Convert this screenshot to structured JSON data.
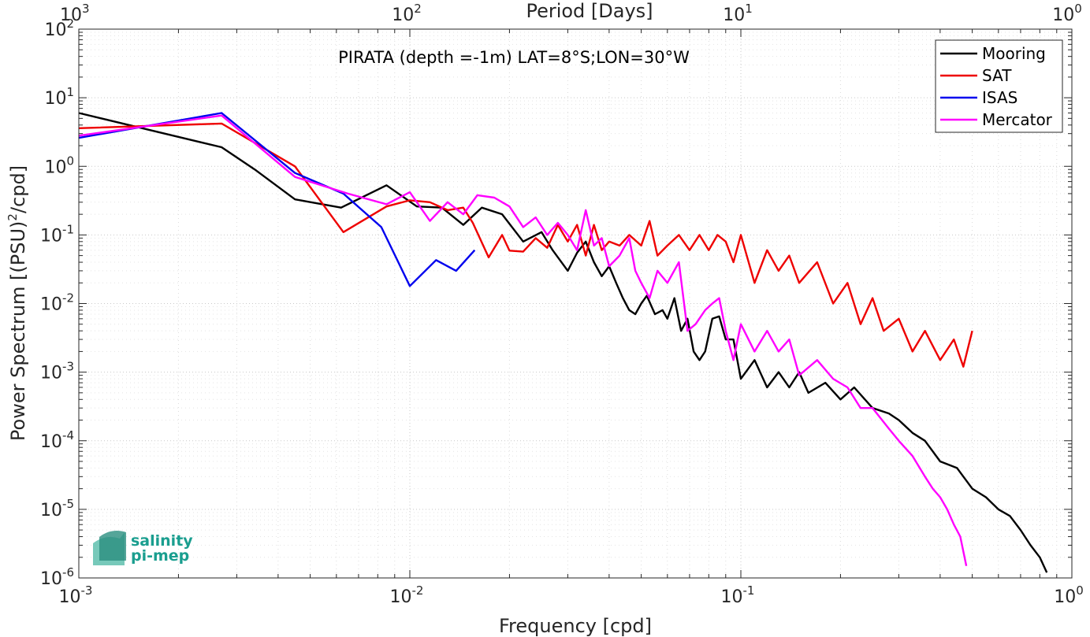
{
  "chart_data": {
    "type": "line",
    "title": "PIRATA (depth =-1m) LAT=8°S;LON=30°W",
    "xlabel": "Frequency [cpd]",
    "ylabel": "Power Spectrum [(PSU)²/cpd]",
    "ylabel_parts": {
      "pre": "Power Spectrum [(PSU)",
      "sup": "2",
      "post": "/cpd]"
    },
    "top_xlabel": "Period [Days]",
    "xscale": "log",
    "yscale": "log",
    "xlim": [
      0.001,
      1
    ],
    "ylim": [
      1e-06,
      100
    ],
    "x_ticks": [
      {
        "value": 0.001,
        "base": "10",
        "exp": "-3"
      },
      {
        "value": 0.01,
        "base": "10",
        "exp": "-2"
      },
      {
        "value": 0.1,
        "base": "10",
        "exp": "-1"
      },
      {
        "value": 1,
        "base": "10",
        "exp": "0"
      }
    ],
    "top_ticks": [
      {
        "value": 0.001,
        "base": "10",
        "exp": "3"
      },
      {
        "value": 0.01,
        "base": "10",
        "exp": "2"
      },
      {
        "value": 0.1,
        "base": "10",
        "exp": "1"
      },
      {
        "value": 1,
        "base": "10",
        "exp": "0"
      }
    ],
    "y_ticks": [
      {
        "value": 1e-06,
        "base": "10",
        "exp": "-6"
      },
      {
        "value": 1e-05,
        "base": "10",
        "exp": "-5"
      },
      {
        "value": 0.0001,
        "base": "10",
        "exp": "-4"
      },
      {
        "value": 0.001,
        "base": "10",
        "exp": "-3"
      },
      {
        "value": 0.01,
        "base": "10",
        "exp": "-2"
      },
      {
        "value": 0.1,
        "base": "10",
        "exp": "-1"
      },
      {
        "value": 1,
        "base": "10",
        "exp": "0"
      },
      {
        "value": 10,
        "base": "10",
        "exp": "1"
      },
      {
        "value": 100,
        "base": "10",
        "exp": "2"
      }
    ],
    "grid": true,
    "minor_grid": true,
    "legend_position": "top-right",
    "series": [
      {
        "name": "Mooring",
        "color": "#000000",
        "points": [
          [
            0.001,
            6
          ],
          [
            0.0027,
            1.9
          ],
          [
            0.0034,
            0.9
          ],
          [
            0.0045,
            0.33
          ],
          [
            0.0062,
            0.25
          ],
          [
            0.0085,
            0.53
          ],
          [
            0.0105,
            0.26
          ],
          [
            0.0125,
            0.25
          ],
          [
            0.0145,
            0.14
          ],
          [
            0.0165,
            0.25
          ],
          [
            0.019,
            0.2
          ],
          [
            0.022,
            0.08
          ],
          [
            0.025,
            0.11
          ],
          [
            0.027,
            0.06
          ],
          [
            0.03,
            0.03
          ],
          [
            0.032,
            0.055
          ],
          [
            0.034,
            0.08
          ],
          [
            0.036,
            0.04
          ],
          [
            0.038,
            0.025
          ],
          [
            0.04,
            0.035
          ],
          [
            0.042,
            0.02
          ],
          [
            0.044,
            0.012
          ],
          [
            0.046,
            0.008
          ],
          [
            0.048,
            0.007
          ],
          [
            0.05,
            0.01
          ],
          [
            0.052,
            0.013
          ],
          [
            0.055,
            0.007
          ],
          [
            0.058,
            0.008
          ],
          [
            0.06,
            0.006
          ],
          [
            0.063,
            0.012
          ],
          [
            0.066,
            0.004
          ],
          [
            0.069,
            0.006
          ],
          [
            0.072,
            0.002
          ],
          [
            0.075,
            0.0015
          ],
          [
            0.078,
            0.002
          ],
          [
            0.082,
            0.006
          ],
          [
            0.086,
            0.0065
          ],
          [
            0.09,
            0.003
          ],
          [
            0.095,
            0.003
          ],
          [
            0.1,
            0.0008
          ],
          [
            0.11,
            0.0015
          ],
          [
            0.12,
            0.0006
          ],
          [
            0.13,
            0.001
          ],
          [
            0.14,
            0.0006
          ],
          [
            0.15,
            0.001
          ],
          [
            0.16,
            0.0005
          ],
          [
            0.18,
            0.0007
          ],
          [
            0.2,
            0.0004
          ],
          [
            0.22,
            0.0006
          ],
          [
            0.25,
            0.0003
          ],
          [
            0.28,
            0.00025
          ],
          [
            0.3,
            0.0002
          ],
          [
            0.33,
            0.00013
          ],
          [
            0.36,
            0.0001
          ],
          [
            0.4,
            5e-05
          ],
          [
            0.45,
            4e-05
          ],
          [
            0.5,
            2e-05
          ],
          [
            0.55,
            1.5e-05
          ],
          [
            0.6,
            1e-05
          ],
          [
            0.65,
            8e-06
          ],
          [
            0.7,
            5e-06
          ],
          [
            0.75,
            3e-06
          ],
          [
            0.8,
            2e-06
          ],
          [
            0.84,
            1.2e-06
          ]
        ]
      },
      {
        "name": "SAT",
        "color": "#ee0000",
        "points": [
          [
            0.001,
            3.6
          ],
          [
            0.0027,
            4.2
          ],
          [
            0.0045,
            1.0
          ],
          [
            0.0063,
            0.11
          ],
          [
            0.0085,
            0.26
          ],
          [
            0.01,
            0.32
          ],
          [
            0.0115,
            0.3
          ],
          [
            0.013,
            0.23
          ],
          [
            0.0145,
            0.25
          ],
          [
            0.0155,
            0.15
          ],
          [
            0.0173,
            0.047
          ],
          [
            0.019,
            0.1
          ],
          [
            0.02,
            0.059
          ],
          [
            0.022,
            0.057
          ],
          [
            0.024,
            0.09
          ],
          [
            0.026,
            0.065
          ],
          [
            0.028,
            0.14
          ],
          [
            0.03,
            0.08
          ],
          [
            0.032,
            0.14
          ],
          [
            0.034,
            0.05
          ],
          [
            0.036,
            0.14
          ],
          [
            0.038,
            0.06
          ],
          [
            0.04,
            0.08
          ],
          [
            0.043,
            0.07
          ],
          [
            0.046,
            0.1
          ],
          [
            0.05,
            0.07
          ],
          [
            0.053,
            0.16
          ],
          [
            0.056,
            0.05
          ],
          [
            0.06,
            0.07
          ],
          [
            0.065,
            0.1
          ],
          [
            0.07,
            0.06
          ],
          [
            0.075,
            0.1
          ],
          [
            0.08,
            0.06
          ],
          [
            0.085,
            0.1
          ],
          [
            0.09,
            0.08
          ],
          [
            0.095,
            0.04
          ],
          [
            0.1,
            0.1
          ],
          [
            0.11,
            0.02
          ],
          [
            0.12,
            0.06
          ],
          [
            0.13,
            0.03
          ],
          [
            0.14,
            0.05
          ],
          [
            0.15,
            0.02
          ],
          [
            0.17,
            0.04
          ],
          [
            0.19,
            0.01
          ],
          [
            0.21,
            0.02
          ],
          [
            0.23,
            0.005
          ],
          [
            0.25,
            0.012
          ],
          [
            0.27,
            0.004
          ],
          [
            0.3,
            0.006
          ],
          [
            0.33,
            0.002
          ],
          [
            0.36,
            0.004
          ],
          [
            0.4,
            0.0015
          ],
          [
            0.44,
            0.003
          ],
          [
            0.47,
            0.0012
          ],
          [
            0.5,
            0.004
          ]
        ]
      },
      {
        "name": "ISAS",
        "color": "#0000ee",
        "points": [
          [
            0.001,
            2.6
          ],
          [
            0.0027,
            6.0
          ],
          [
            0.0045,
            0.8
          ],
          [
            0.0063,
            0.4
          ],
          [
            0.0082,
            0.13
          ],
          [
            0.01,
            0.018
          ],
          [
            0.012,
            0.043
          ],
          [
            0.0138,
            0.03
          ],
          [
            0.0157,
            0.06
          ]
        ]
      },
      {
        "name": "Mercator",
        "color": "#ff00ff",
        "points": [
          [
            0.001,
            2.8
          ],
          [
            0.0027,
            5.5
          ],
          [
            0.0045,
            0.7
          ],
          [
            0.0065,
            0.4
          ],
          [
            0.0085,
            0.28
          ],
          [
            0.01,
            0.42
          ],
          [
            0.0115,
            0.16
          ],
          [
            0.013,
            0.3
          ],
          [
            0.0145,
            0.2
          ],
          [
            0.016,
            0.38
          ],
          [
            0.018,
            0.35
          ],
          [
            0.02,
            0.26
          ],
          [
            0.022,
            0.13
          ],
          [
            0.024,
            0.18
          ],
          [
            0.026,
            0.1
          ],
          [
            0.028,
            0.15
          ],
          [
            0.03,
            0.1
          ],
          [
            0.032,
            0.06
          ],
          [
            0.034,
            0.23
          ],
          [
            0.036,
            0.07
          ],
          [
            0.038,
            0.09
          ],
          [
            0.04,
            0.035
          ],
          [
            0.043,
            0.05
          ],
          [
            0.046,
            0.09
          ],
          [
            0.048,
            0.03
          ],
          [
            0.05,
            0.02
          ],
          [
            0.053,
            0.012
          ],
          [
            0.056,
            0.03
          ],
          [
            0.06,
            0.02
          ],
          [
            0.065,
            0.04
          ],
          [
            0.069,
            0.004
          ],
          [
            0.073,
            0.005
          ],
          [
            0.078,
            0.008
          ],
          [
            0.082,
            0.01
          ],
          [
            0.086,
            0.012
          ],
          [
            0.09,
            0.004
          ],
          [
            0.095,
            0.0015
          ],
          [
            0.1,
            0.005
          ],
          [
            0.11,
            0.002
          ],
          [
            0.12,
            0.004
          ],
          [
            0.13,
            0.002
          ],
          [
            0.14,
            0.003
          ],
          [
            0.15,
            0.0009
          ],
          [
            0.17,
            0.0015
          ],
          [
            0.19,
            0.0008
          ],
          [
            0.21,
            0.0006
          ],
          [
            0.23,
            0.0003
          ],
          [
            0.25,
            0.0003
          ],
          [
            0.28,
            0.00015
          ],
          [
            0.3,
            0.0001
          ],
          [
            0.33,
            6e-05
          ],
          [
            0.36,
            3e-05
          ],
          [
            0.38,
            2e-05
          ],
          [
            0.4,
            1.5e-05
          ],
          [
            0.42,
            1e-05
          ],
          [
            0.44,
            6e-06
          ],
          [
            0.46,
            4e-06
          ],
          [
            0.48,
            1.5e-06
          ]
        ]
      }
    ]
  },
  "logo": {
    "line1": "salinity",
    "line2": "pi-mep"
  }
}
